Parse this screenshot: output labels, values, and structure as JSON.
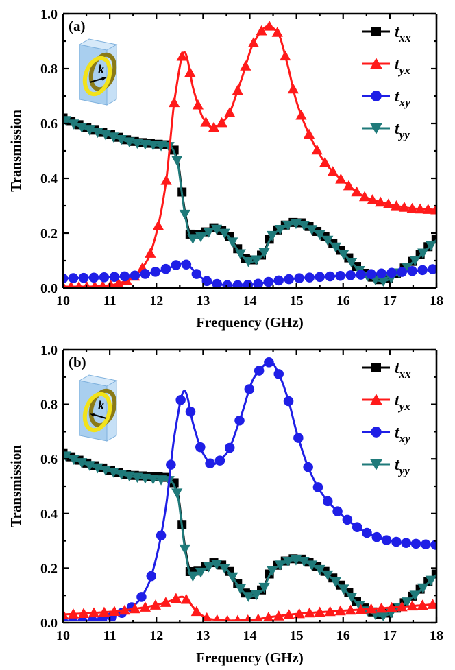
{
  "colors": {
    "txx": "#000000",
    "tyx": "#ff1a1a",
    "txy": "#1f1fe6",
    "tyy": "#1f7a7a"
  },
  "chart_data": [
    {
      "type": "line",
      "panel_label": "(a)",
      "xlabel": "Frequency (GHz)",
      "ylabel": "Transmission",
      "xlim": [
        10,
        18
      ],
      "ylim": [
        0.0,
        1.0
      ],
      "xticks": [
        "10",
        "11",
        "12",
        "13",
        "14",
        "15",
        "16",
        "17",
        "18"
      ],
      "yticks": [
        "0.0",
        "0.2",
        "0.4",
        "0.6",
        "0.8",
        "1.0"
      ],
      "legend_position": "top-right",
      "inset_icon": "ring-resonator-icon",
      "inset_label": "k",
      "legend": [
        {
          "key": "txx",
          "main": "t",
          "sub": "xx",
          "marker": "square"
        },
        {
          "key": "tyx",
          "main": "t",
          "sub": "yx",
          "marker": "triangle-up"
        },
        {
          "key": "txy",
          "main": "t",
          "sub": "xy",
          "marker": "circle"
        },
        {
          "key": "tyy",
          "main": "t",
          "sub": "yy",
          "marker": "triangle-down"
        }
      ],
      "series": [
        {
          "key": "txx",
          "marker": "square",
          "marker_step": 0.17,
          "x": [
            10,
            10.5,
            11,
            11.5,
            12,
            12.3,
            12.45,
            12.55,
            12.62,
            12.75,
            13.0,
            13.25,
            13.5,
            13.8,
            14.0,
            14.25,
            14.5,
            15.0,
            15.5,
            16.0,
            16.5,
            16.85,
            17.2,
            17.5,
            18.0
          ],
          "y": [
            0.62,
            0.585,
            0.56,
            0.535,
            0.525,
            0.52,
            0.47,
            0.35,
            0.27,
            0.19,
            0.2,
            0.22,
            0.2,
            0.13,
            0.1,
            0.12,
            0.2,
            0.24,
            0.2,
            0.13,
            0.05,
            0.03,
            0.06,
            0.1,
            0.18
          ]
        },
        {
          "key": "tyy",
          "marker": "triangle-down",
          "marker_step": 0.17,
          "marker_offset": 0.06,
          "x": [
            10,
            10.5,
            11,
            11.5,
            12,
            12.3,
            12.45,
            12.55,
            12.62,
            12.75,
            13.0,
            13.25,
            13.5,
            13.8,
            14.0,
            14.25,
            14.5,
            15.0,
            15.5,
            16.0,
            16.5,
            16.85,
            17.2,
            17.5,
            18.0
          ],
          "y": [
            0.615,
            0.58,
            0.555,
            0.53,
            0.52,
            0.515,
            0.46,
            0.34,
            0.26,
            0.18,
            0.19,
            0.215,
            0.195,
            0.125,
            0.095,
            0.115,
            0.195,
            0.235,
            0.195,
            0.125,
            0.045,
            0.025,
            0.055,
            0.095,
            0.175
          ]
        },
        {
          "key": "tyx",
          "marker": "triangle-up",
          "marker_step": 0.17,
          "x": [
            10,
            10.5,
            11,
            11.5,
            11.8,
            12.0,
            12.2,
            12.4,
            12.6,
            12.8,
            13.0,
            13.2,
            13.5,
            13.8,
            14.1,
            14.4,
            14.6,
            14.8,
            15.0,
            15.3,
            15.6,
            16.0,
            16.5,
            17.0,
            17.5,
            18.0
          ],
          "y": [
            0.005,
            0.005,
            0.01,
            0.04,
            0.1,
            0.2,
            0.38,
            0.7,
            0.86,
            0.72,
            0.62,
            0.585,
            0.62,
            0.75,
            0.9,
            0.955,
            0.93,
            0.82,
            0.68,
            0.55,
            0.46,
            0.39,
            0.33,
            0.305,
            0.29,
            0.285
          ]
        },
        {
          "key": "txy",
          "marker": "circle",
          "marker_step": 0.22,
          "x": [
            10,
            11,
            11.5,
            12.0,
            12.3,
            12.55,
            12.7,
            12.9,
            13.2,
            13.6,
            14.0,
            14.5,
            15.0,
            16.0,
            17.0,
            18.0
          ],
          "y": [
            0.035,
            0.04,
            0.045,
            0.06,
            0.075,
            0.09,
            0.08,
            0.045,
            0.018,
            0.01,
            0.012,
            0.025,
            0.035,
            0.045,
            0.055,
            0.07
          ]
        }
      ]
    },
    {
      "type": "line",
      "panel_label": "(b)",
      "xlabel": "Frequency (GHz)",
      "ylabel": "Transmission",
      "xlim": [
        10,
        18
      ],
      "ylim": [
        0.0,
        1.0
      ],
      "xticks": [
        "10",
        "11",
        "12",
        "13",
        "14",
        "15",
        "16",
        "17",
        "18"
      ],
      "yticks": [
        "0.0",
        "0.2",
        "0.4",
        "0.6",
        "0.8",
        "1.0"
      ],
      "legend_position": "top-right",
      "inset_icon": "ring-resonator-icon",
      "inset_label": "k",
      "legend": [
        {
          "key": "txx",
          "main": "t",
          "sub": "xx",
          "marker": "square"
        },
        {
          "key": "tyx",
          "main": "t",
          "sub": "yx",
          "marker": "triangle-up"
        },
        {
          "key": "txy",
          "main": "t",
          "sub": "xy",
          "marker": "circle"
        },
        {
          "key": "tyy",
          "main": "t",
          "sub": "yy",
          "marker": "triangle-down"
        }
      ],
      "series": [
        {
          "key": "txx",
          "marker": "square",
          "marker_step": 0.17,
          "x": [
            10,
            10.5,
            11,
            11.5,
            12,
            12.3,
            12.45,
            12.55,
            12.62,
            12.75,
            13.0,
            13.25,
            13.5,
            13.8,
            14.0,
            14.25,
            14.5,
            15.0,
            15.5,
            16.0,
            16.5,
            16.85,
            17.2,
            17.5,
            18.0
          ],
          "y": [
            0.62,
            0.585,
            0.56,
            0.54,
            0.535,
            0.53,
            0.48,
            0.36,
            0.27,
            0.18,
            0.2,
            0.22,
            0.2,
            0.13,
            0.1,
            0.12,
            0.2,
            0.235,
            0.2,
            0.13,
            0.05,
            0.03,
            0.06,
            0.1,
            0.18
          ]
        },
        {
          "key": "tyy",
          "marker": "triangle-down",
          "marker_step": 0.17,
          "marker_offset": 0.06,
          "x": [
            10,
            10.5,
            11,
            11.5,
            12,
            12.3,
            12.45,
            12.55,
            12.62,
            12.75,
            13.0,
            13.25,
            13.5,
            13.8,
            14.0,
            14.25,
            14.5,
            15.0,
            15.5,
            16.0,
            16.5,
            16.85,
            17.2,
            17.5,
            18.0
          ],
          "y": [
            0.615,
            0.58,
            0.555,
            0.535,
            0.525,
            0.52,
            0.47,
            0.35,
            0.26,
            0.17,
            0.19,
            0.215,
            0.195,
            0.125,
            0.095,
            0.115,
            0.195,
            0.23,
            0.195,
            0.125,
            0.045,
            0.025,
            0.055,
            0.095,
            0.175
          ]
        },
        {
          "key": "txy",
          "marker": "circle",
          "marker_step": 0.21,
          "x": [
            10,
            10.5,
            11,
            11.5,
            11.8,
            12.0,
            12.2,
            12.4,
            12.6,
            12.8,
            13.0,
            13.2,
            13.5,
            13.8,
            14.1,
            14.45,
            14.65,
            14.85,
            15.0,
            15.3,
            15.6,
            16.0,
            16.5,
            17.0,
            17.5,
            18.0
          ],
          "y": [
            0.005,
            0.005,
            0.02,
            0.06,
            0.13,
            0.24,
            0.42,
            0.7,
            0.85,
            0.72,
            0.62,
            0.58,
            0.62,
            0.75,
            0.9,
            0.955,
            0.9,
            0.8,
            0.7,
            0.55,
            0.46,
            0.39,
            0.33,
            0.3,
            0.29,
            0.285
          ]
        },
        {
          "key": "tyx",
          "marker": "triangle-up",
          "marker_step": 0.22,
          "x": [
            10,
            11,
            11.5,
            12.0,
            12.3,
            12.55,
            12.7,
            12.9,
            13.2,
            13.6,
            14.0,
            14.5,
            15.0,
            16.0,
            17.0,
            18.0
          ],
          "y": [
            0.03,
            0.04,
            0.05,
            0.065,
            0.08,
            0.095,
            0.075,
            0.035,
            0.012,
            0.008,
            0.01,
            0.022,
            0.032,
            0.044,
            0.055,
            0.068
          ]
        }
      ]
    }
  ]
}
